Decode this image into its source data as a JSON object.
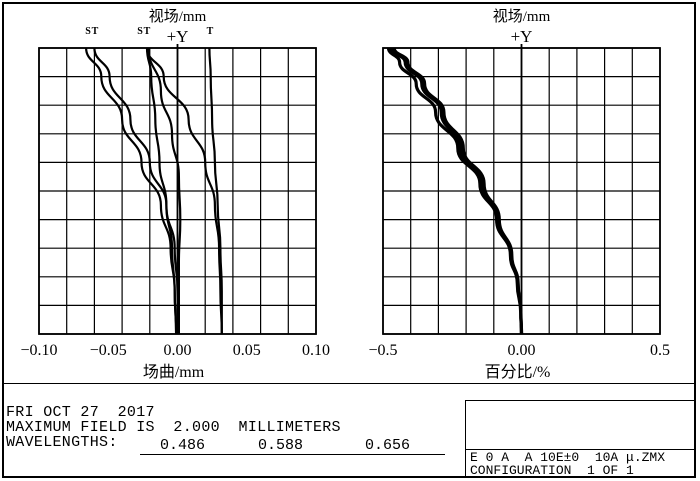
{
  "chart_data": [
    {
      "type": "line",
      "title": "视场/mm",
      "top_label": "+Y",
      "xlabel": "场曲/mm",
      "xlim": [
        -0.1,
        0.1
      ],
      "ylim": [
        0,
        2.0
      ],
      "xticks": [
        "−0.10",
        "−0.05",
        "0.00",
        "0.05",
        "0.10"
      ],
      "grid": true,
      "series_markers": [
        "S",
        "T",
        "S",
        "T",
        "T"
      ],
      "series": [
        {
          "name": "S",
          "x": [
            -0.066,
            -0.055,
            -0.04,
            -0.026,
            -0.012,
            -0.005,
            -0.002,
            -0.001
          ],
          "y": [
            2.0,
            1.8,
            1.5,
            1.2,
            0.9,
            0.6,
            0.3,
            0.0
          ]
        },
        {
          "name": "S",
          "x": [
            -0.06,
            -0.049,
            -0.034,
            -0.02,
            -0.008,
            -0.002,
            0.0,
            0.001
          ],
          "y": [
            2.0,
            1.8,
            1.5,
            1.2,
            0.9,
            0.6,
            0.3,
            0.0
          ]
        },
        {
          "name": "T",
          "x": [
            -0.022,
            -0.019,
            -0.016,
            -0.013,
            -0.008,
            -0.004,
            -0.002,
            -0.001
          ],
          "y": [
            2.0,
            1.8,
            1.5,
            1.2,
            0.9,
            0.6,
            0.3,
            0.0
          ]
        },
        {
          "name": "T",
          "x": [
            -0.021,
            -0.012,
            -0.004,
            0.001,
            0.002,
            0.001,
            0.001,
            0.001
          ],
          "y": [
            2.0,
            1.7,
            1.4,
            1.1,
            0.8,
            0.5,
            0.2,
            0.0
          ]
        },
        {
          "name": "T",
          "x": [
            -0.022,
            -0.01,
            0.008,
            0.02,
            0.027,
            0.03,
            0.031,
            0.032
          ],
          "y": [
            2.0,
            1.8,
            1.5,
            1.2,
            0.9,
            0.6,
            0.3,
            0.0
          ]
        },
        {
          "name": "T",
          "x": [
            0.023,
            0.024,
            0.025,
            0.027,
            0.029,
            0.031,
            0.032,
            0.032
          ],
          "y": [
            2.0,
            1.8,
            1.5,
            1.2,
            0.9,
            0.6,
            0.3,
            0.0
          ]
        }
      ]
    },
    {
      "type": "line",
      "title": "视场/mm",
      "top_label": "+Y",
      "xlabel": "百分比/%",
      "xlim": [
        -0.5,
        0.5
      ],
      "ylim": [
        0,
        2.0
      ],
      "xticks": [
        "−0.5",
        "0.00",
        "0.5"
      ],
      "grid": true,
      "series": [
        {
          "name": "",
          "x": [
            -0.48,
            -0.44,
            -0.38,
            -0.31,
            -0.23,
            -0.15,
            -0.09,
            -0.04,
            -0.015,
            -0.003,
            0.0
          ],
          "y": [
            2.0,
            1.9,
            1.75,
            1.55,
            1.3,
            1.05,
            0.8,
            0.55,
            0.35,
            0.15,
            0.0
          ]
        },
        {
          "name": "",
          "x": [
            -0.47,
            -0.42,
            -0.36,
            -0.29,
            -0.22,
            -0.14,
            -0.085,
            -0.038,
            -0.013,
            -0.002,
            0.0
          ],
          "y": [
            2.0,
            1.9,
            1.75,
            1.55,
            1.3,
            1.05,
            0.8,
            0.55,
            0.35,
            0.15,
            0.0
          ]
        },
        {
          "name": "",
          "x": [
            -0.46,
            -0.41,
            -0.35,
            -0.28,
            -0.21,
            -0.135,
            -0.08,
            -0.035,
            -0.012,
            -0.002,
            0.0
          ],
          "y": [
            2.0,
            1.9,
            1.75,
            1.55,
            1.3,
            1.05,
            0.8,
            0.55,
            0.35,
            0.15,
            0.0
          ]
        }
      ]
    }
  ],
  "info": {
    "line1": "FRI OCT 27  2017",
    "line2": "MAXIMUM FIELD IS  2.000  MILLIMETERS",
    "line3": "WAVELENGTHS:",
    "wavelengths": [
      "0.486",
      "0.588",
      "0.656"
    ]
  },
  "box": {
    "line1": "E 0 A  A 10E±0  10A μ.ZMX",
    "line2": "CONFIGURATION  1 OF 1"
  }
}
